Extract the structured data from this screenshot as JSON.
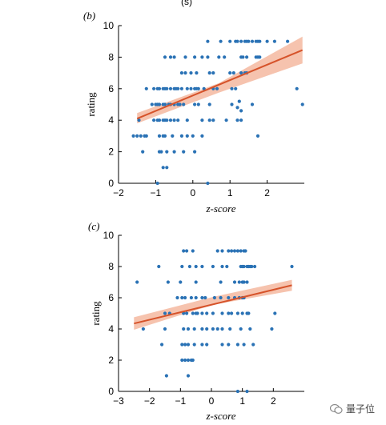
{
  "top_fragment": "(s)",
  "watermark_text": "量子位",
  "colors": {
    "points": "#2a72b5",
    "fit": "#d6532a",
    "band": "#f5b8a0"
  },
  "chart_data": [
    {
      "panel_label": "(b)",
      "type": "scatter",
      "xlabel": "z-score",
      "ylabel": "rating",
      "xlim": [
        -2,
        3
      ],
      "ylim": [
        0,
        10
      ],
      "xticks": [
        -2,
        -1,
        0,
        1,
        2
      ],
      "yticks": [
        0,
        2,
        4,
        6,
        8,
        10
      ],
      "fit": {
        "x": [
          -1.5,
          2.95
        ],
        "y": [
          4.1,
          8.45
        ],
        "band_x": [
          -1.5,
          0.7,
          2.95
        ],
        "band_lo": [
          3.8,
          5.75,
          7.6
        ],
        "band_hi": [
          4.45,
          6.35,
          9.3
        ]
      },
      "points": [
        [
          2.2,
          9
        ],
        [
          1.3,
          9
        ],
        [
          1.0,
          9
        ],
        [
          1.4,
          9
        ],
        [
          1.15,
          9
        ],
        [
          1.2,
          9
        ],
        [
          1.7,
          9
        ],
        [
          1.45,
          9
        ],
        [
          1.6,
          9
        ],
        [
          2.0,
          9
        ],
        [
          1.75,
          9
        ],
        [
          2.55,
          9
        ],
        [
          1.5,
          9
        ],
        [
          0.4,
          9
        ],
        [
          0.75,
          9
        ],
        [
          1.8,
          9
        ],
        [
          -0.6,
          8
        ],
        [
          -0.75,
          8
        ],
        [
          -0.5,
          8
        ],
        [
          -0.2,
          8
        ],
        [
          0.05,
          8
        ],
        [
          0.25,
          8
        ],
        [
          0.4,
          8
        ],
        [
          0.7,
          8
        ],
        [
          0.85,
          8
        ],
        [
          1.3,
          8
        ],
        [
          1.35,
          8
        ],
        [
          1.45,
          8
        ],
        [
          1.7,
          8
        ],
        [
          1.75,
          8
        ],
        [
          1.8,
          8
        ],
        [
          -0.3,
          7
        ],
        [
          -0.2,
          7
        ],
        [
          -0.05,
          7
        ],
        [
          0.1,
          7
        ],
        [
          0.45,
          7
        ],
        [
          0.55,
          7
        ],
        [
          1.0,
          7
        ],
        [
          1.1,
          7
        ],
        [
          1.3,
          7
        ],
        [
          1.4,
          7
        ],
        [
          1.45,
          7
        ],
        [
          -1.25,
          6
        ],
        [
          -1.05,
          6
        ],
        [
          -0.95,
          6
        ],
        [
          -0.9,
          6
        ],
        [
          -0.8,
          6
        ],
        [
          -0.75,
          6
        ],
        [
          -0.7,
          6
        ],
        [
          -0.6,
          6
        ],
        [
          -0.5,
          6
        ],
        [
          -0.45,
          6
        ],
        [
          -0.4,
          6
        ],
        [
          -0.3,
          6
        ],
        [
          -0.15,
          6
        ],
        [
          -0.05,
          6
        ],
        [
          0.05,
          6
        ],
        [
          0.1,
          6
        ],
        [
          0.15,
          6
        ],
        [
          0.3,
          6
        ],
        [
          0.55,
          6
        ],
        [
          0.65,
          6
        ],
        [
          1.05,
          6
        ],
        [
          1.15,
          6
        ],
        [
          2.8,
          6
        ],
        [
          -1.0,
          5
        ],
        [
          -1.1,
          5
        ],
        [
          -0.95,
          5
        ],
        [
          -0.9,
          5
        ],
        [
          -0.8,
          5
        ],
        [
          -0.75,
          5
        ],
        [
          -0.65,
          5
        ],
        [
          -0.6,
          5
        ],
        [
          -0.5,
          5
        ],
        [
          -0.4,
          5
        ],
        [
          -0.35,
          5
        ],
        [
          -0.25,
          5
        ],
        [
          0.05,
          5
        ],
        [
          0.15,
          5
        ],
        [
          0.45,
          5
        ],
        [
          1.05,
          5
        ],
        [
          1.6,
          5
        ],
        [
          2.95,
          5
        ],
        [
          -1.45,
          4
        ],
        [
          -1.05,
          4
        ],
        [
          -0.95,
          4
        ],
        [
          -0.9,
          4
        ],
        [
          -0.8,
          4
        ],
        [
          -0.75,
          4
        ],
        [
          -0.7,
          4
        ],
        [
          -0.6,
          4
        ],
        [
          -0.5,
          4
        ],
        [
          -0.4,
          4
        ],
        [
          -0.15,
          4
        ],
        [
          0.25,
          4
        ],
        [
          0.45,
          4
        ],
        [
          0.55,
          4
        ],
        [
          0.9,
          4
        ],
        [
          1.2,
          4
        ],
        [
          1.3,
          4
        ],
        [
          1.3,
          4.6
        ],
        [
          1.2,
          4.8
        ],
        [
          1.25,
          5.2
        ],
        [
          -1.6,
          3
        ],
        [
          -1.5,
          3
        ],
        [
          -1.4,
          3
        ],
        [
          -1.3,
          3
        ],
        [
          -1.25,
          3
        ],
        [
          -0.9,
          3
        ],
        [
          -0.8,
          3
        ],
        [
          -0.75,
          3
        ],
        [
          -0.55,
          3
        ],
        [
          -0.3,
          3
        ],
        [
          -0.15,
          3
        ],
        [
          0.0,
          3
        ],
        [
          0.25,
          3
        ],
        [
          1.75,
          3
        ],
        [
          -1.35,
          2
        ],
        [
          -0.9,
          2
        ],
        [
          -0.85,
          2
        ],
        [
          -0.7,
          2
        ],
        [
          -0.5,
          2
        ],
        [
          -0.25,
          2
        ],
        [
          0.05,
          2
        ],
        [
          -0.7,
          1
        ],
        [
          -0.8,
          1
        ],
        [
          -0.95,
          0
        ],
        [
          0.4,
          0
        ]
      ]
    },
    {
      "panel_label": "(c)",
      "type": "scatter",
      "xlabel": "z-score",
      "ylabel": "rating",
      "xlim": [
        -3,
        3
      ],
      "ylim": [
        0,
        10
      ],
      "xticks": [
        -3,
        -2,
        -1,
        0,
        1,
        2
      ],
      "yticks": [
        0,
        2,
        4,
        6,
        8,
        10
      ],
      "fit": {
        "x": [
          -2.5,
          2.6
        ],
        "y": [
          4.35,
          6.8
        ],
        "band_x": [
          -2.5,
          0.05,
          2.6
        ],
        "band_lo": [
          3.95,
          5.55,
          6.45
        ],
        "band_hi": [
          4.75,
          6.05,
          7.15
        ]
      },
      "points": [
        [
          -0.9,
          9
        ],
        [
          -0.8,
          9
        ],
        [
          -0.6,
          9
        ],
        [
          0.2,
          9
        ],
        [
          0.35,
          9
        ],
        [
          0.55,
          9
        ],
        [
          0.65,
          9
        ],
        [
          0.75,
          9
        ],
        [
          0.85,
          9
        ],
        [
          0.95,
          9
        ],
        [
          1.05,
          9
        ],
        [
          1.1,
          9
        ],
        [
          -1.7,
          8
        ],
        [
          -0.95,
          8
        ],
        [
          -0.7,
          8
        ],
        [
          -0.5,
          8
        ],
        [
          -0.3,
          8
        ],
        [
          0.05,
          8
        ],
        [
          0.35,
          8
        ],
        [
          0.5,
          8
        ],
        [
          0.95,
          8
        ],
        [
          1.0,
          8
        ],
        [
          1.05,
          8
        ],
        [
          1.15,
          8
        ],
        [
          1.2,
          8
        ],
        [
          1.25,
          8
        ],
        [
          1.3,
          8
        ],
        [
          1.4,
          8
        ],
        [
          2.6,
          8
        ],
        [
          -2.4,
          7
        ],
        [
          -1.4,
          7
        ],
        [
          -1.0,
          7
        ],
        [
          -0.5,
          7
        ],
        [
          0.3,
          7
        ],
        [
          0.75,
          7
        ],
        [
          0.9,
          7
        ],
        [
          1.0,
          7
        ],
        [
          1.05,
          7
        ],
        [
          1.15,
          7
        ],
        [
          -1.1,
          6
        ],
        [
          -0.95,
          6
        ],
        [
          -0.85,
          6
        ],
        [
          -0.65,
          6
        ],
        [
          -0.5,
          6
        ],
        [
          -0.3,
          6
        ],
        [
          -0.2,
          6
        ],
        [
          0.1,
          6
        ],
        [
          0.3,
          6
        ],
        [
          0.55,
          6
        ],
        [
          0.75,
          6
        ],
        [
          0.9,
          6
        ],
        [
          1.0,
          6
        ],
        [
          1.05,
          6
        ],
        [
          -1.5,
          5
        ],
        [
          -1.35,
          5
        ],
        [
          -0.9,
          5
        ],
        [
          -0.8,
          5
        ],
        [
          -0.6,
          5
        ],
        [
          -0.5,
          5
        ],
        [
          -0.45,
          5
        ],
        [
          -0.3,
          5
        ],
        [
          -0.15,
          5
        ],
        [
          0.05,
          5
        ],
        [
          0.35,
          5
        ],
        [
          0.55,
          5
        ],
        [
          0.65,
          5
        ],
        [
          0.85,
          5
        ],
        [
          1.0,
          5
        ],
        [
          1.15,
          5
        ],
        [
          1.2,
          5
        ],
        [
          2.05,
          5
        ],
        [
          -2.2,
          4
        ],
        [
          -1.5,
          4
        ],
        [
          -0.9,
          4
        ],
        [
          -0.75,
          4
        ],
        [
          -0.55,
          4
        ],
        [
          -0.3,
          4
        ],
        [
          -0.15,
          4
        ],
        [
          0.05,
          4
        ],
        [
          0.2,
          4
        ],
        [
          0.35,
          4
        ],
        [
          0.6,
          4
        ],
        [
          0.95,
          4
        ],
        [
          1.25,
          4
        ],
        [
          1.95,
          4
        ],
        [
          -1.6,
          3
        ],
        [
          -0.95,
          3
        ],
        [
          -0.85,
          3
        ],
        [
          -0.75,
          3
        ],
        [
          -0.55,
          3
        ],
        [
          -0.3,
          3
        ],
        [
          -0.15,
          3
        ],
        [
          0.35,
          3
        ],
        [
          0.55,
          3
        ],
        [
          0.85,
          3
        ],
        [
          1.05,
          3
        ],
        [
          1.35,
          3
        ],
        [
          -0.95,
          2
        ],
        [
          -0.85,
          2
        ],
        [
          -0.75,
          2
        ],
        [
          -0.65,
          2
        ],
        [
          -0.6,
          2
        ],
        [
          -1.45,
          1
        ],
        [
          -0.75,
          1
        ],
        [
          0.85,
          0
        ],
        [
          1.15,
          0
        ]
      ]
    }
  ]
}
